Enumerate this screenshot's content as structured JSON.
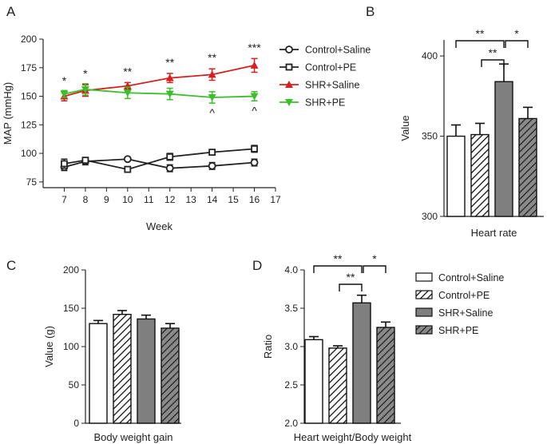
{
  "panels": {
    "A": "A",
    "B": "B",
    "C": "C",
    "D": "D"
  },
  "colors": {
    "control": "#222222",
    "shr_saline": "#d62020",
    "shr_pe": "#3bbf2a",
    "bar_gray": "#7f7f7f"
  },
  "chart_data": [
    {
      "id": "A",
      "type": "line",
      "xlabel": "Week",
      "ylabel": "MAP (mmHg)",
      "xlim": [
        6,
        17
      ],
      "ylim": [
        70,
        200
      ],
      "xticks": [
        "7",
        "8",
        "9",
        "10",
        "11",
        "12",
        "13",
        "14",
        "15",
        "16",
        "17"
      ],
      "yticks": [
        "75",
        "100",
        "125",
        "150",
        "175",
        "200"
      ],
      "legend_position": "right",
      "x": [
        7,
        8,
        10,
        12,
        14,
        16
      ],
      "series": [
        {
          "name": "Control+Saline",
          "marker": "circle-open",
          "values": [
            88,
            93,
            95,
            87,
            89,
            92
          ],
          "errors": [
            3,
            3,
            1,
            3,
            3,
            3
          ]
        },
        {
          "name": "Control+PE",
          "marker": "square-open",
          "values": [
            91,
            94,
            86,
            97,
            101,
            104
          ],
          "errors": [
            4,
            2,
            2,
            3,
            2,
            3
          ]
        },
        {
          "name": "SHR+Saline",
          "marker": "triangle-up",
          "values": [
            150,
            155,
            159,
            166,
            169,
            177
          ],
          "errors": [
            4,
            5,
            3,
            4,
            5,
            6
          ]
        },
        {
          "name": "SHR+PE",
          "marker": "triangle-down",
          "values": [
            152,
            156,
            153,
            152,
            149,
            150
          ],
          "errors": [
            3,
            5,
            5,
            5,
            5,
            4
          ]
        }
      ],
      "annotations": [
        {
          "x": 7,
          "text": "*"
        },
        {
          "x": 8,
          "text": "*"
        },
        {
          "x": 10,
          "text": "**"
        },
        {
          "x": 12,
          "text": "**"
        },
        {
          "x": 14,
          "text": "**"
        },
        {
          "x": 16,
          "text": "***"
        }
      ],
      "below_annotations": [
        {
          "x": 14,
          "text": "^"
        },
        {
          "x": 16,
          "text": "^"
        }
      ]
    },
    {
      "id": "B",
      "type": "bar",
      "categories": [
        "Control+Saline",
        "Control+PE",
        "SHR+Saline",
        "SHR+PE"
      ],
      "values": [
        350,
        351,
        384,
        361
      ],
      "errors": [
        7,
        7,
        11,
        7
      ],
      "xlabel": "Heart rate",
      "ylabel": "Value",
      "ylim": [
        300,
        410
      ],
      "yticks": [
        "300",
        "350",
        "400"
      ],
      "significance": [
        {
          "from": 0,
          "to": 2,
          "text": "**",
          "level": 2
        },
        {
          "from": 1,
          "to": 2,
          "text": "**",
          "level": 1
        },
        {
          "from": 2,
          "to": 3,
          "text": "*",
          "level": 2
        }
      ]
    },
    {
      "id": "C",
      "type": "bar",
      "categories": [
        "Control+Saline",
        "Control+PE",
        "SHR+Saline",
        "SHR+PE"
      ],
      "values": [
        130,
        142,
        136,
        124
      ],
      "errors": [
        4,
        5,
        5,
        6
      ],
      "xlabel": "Body weight gain",
      "ylabel": "Value (g)",
      "ylim": [
        0,
        200
      ],
      "yticks": [
        "0",
        "50",
        "100",
        "150",
        "200"
      ]
    },
    {
      "id": "D",
      "type": "bar",
      "categories": [
        "Control+Saline",
        "Control+PE",
        "SHR+Saline",
        "SHR+PE"
      ],
      "values": [
        3.09,
        2.98,
        3.57,
        3.25
      ],
      "errors": [
        0.04,
        0.03,
        0.1,
        0.07
      ],
      "xlabel": "Heart weight/Body weight",
      "ylabel": "Ratio",
      "ylim": [
        2.0,
        4.0
      ],
      "yticks": [
        "2.0",
        "2.5",
        "3.0",
        "3.5",
        "4.0"
      ],
      "legend_position": "right",
      "significance": [
        {
          "from": 0,
          "to": 2,
          "text": "**",
          "level": 2
        },
        {
          "from": 1,
          "to": 2,
          "text": "**",
          "level": 1
        },
        {
          "from": 2,
          "to": 3,
          "text": "*",
          "level": 2
        }
      ]
    }
  ]
}
